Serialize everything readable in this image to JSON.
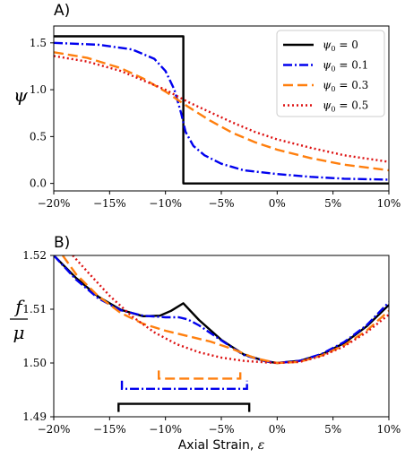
{
  "chart_data": [
    {
      "panel_label": "A)",
      "type": "line",
      "ylabel": "ψ",
      "xlim": [
        -20,
        10
      ],
      "ylim": [
        -0.08,
        1.68
      ],
      "xticks": [
        -20,
        -15,
        -10,
        -5,
        0,
        5,
        10
      ],
      "xtick_labels": [
        "−20%",
        "−15%",
        "−10%",
        "−5%",
        "0%",
        "5%",
        "10%"
      ],
      "yticks": [
        0.0,
        0.5,
        1.0,
        1.5
      ],
      "ytick_labels": [
        "0.0",
        "0.5",
        "1.0",
        "1.5"
      ],
      "legend_position": "top-right",
      "series": [
        {
          "name": "ψ0 = 0",
          "legend": "ψ",
          "legend_sub": "0",
          "legend_rhs": " = 0",
          "color": "#000000",
          "dash": "",
          "x": [
            -20,
            -8.4,
            -8.4,
            10
          ],
          "y": [
            1.57,
            1.57,
            0.0,
            0.0
          ]
        },
        {
          "name": "ψ0 = 0.1",
          "legend": "ψ",
          "legend_sub": "0",
          "legend_rhs": " = 0.1",
          "color": "#0000ee",
          "dash": "10 3 2 3",
          "x": [
            -20,
            -16,
            -13,
            -11,
            -10,
            -9.2,
            -8.6,
            -8.2,
            -7.5,
            -6.5,
            -5,
            -3,
            0,
            3,
            6,
            10
          ],
          "y": [
            1.5,
            1.48,
            1.43,
            1.33,
            1.2,
            1.0,
            0.75,
            0.55,
            0.4,
            0.3,
            0.21,
            0.14,
            0.1,
            0.07,
            0.05,
            0.04
          ]
        },
        {
          "name": "ψ0 = 0.3",
          "legend": "ψ",
          "legend_sub": "0",
          "legend_rhs": " = 0.3",
          "color": "#ff7f0e",
          "dash": "11 5",
          "x": [
            -20,
            -17,
            -14,
            -12,
            -10,
            -8,
            -6,
            -4,
            -2,
            0,
            3,
            6,
            10
          ],
          "y": [
            1.4,
            1.34,
            1.23,
            1.12,
            0.98,
            0.82,
            0.67,
            0.54,
            0.44,
            0.36,
            0.27,
            0.2,
            0.14
          ]
        },
        {
          "name": "ψ0 = 0.5",
          "legend": "ψ",
          "legend_sub": "0",
          "legend_rhs": " = 0.5",
          "color": "#dd1111",
          "dash": "2 3",
          "x": [
            -20,
            -17,
            -14,
            -12,
            -10,
            -8,
            -6,
            -4,
            -2,
            0,
            3,
            6,
            10
          ],
          "y": [
            1.36,
            1.3,
            1.2,
            1.1,
            1.0,
            0.87,
            0.76,
            0.65,
            0.55,
            0.47,
            0.38,
            0.3,
            0.23
          ]
        }
      ]
    },
    {
      "panel_label": "B)",
      "type": "line",
      "ylabel_num": "f",
      "ylabel_den": "μ",
      "xlabel": "Axial Strain, ",
      "xlabel_symbol": "ε",
      "xlim": [
        -20,
        10
      ],
      "ylim": [
        1.49,
        1.52
      ],
      "xticks": [
        -20,
        -15,
        -10,
        -5,
        0,
        5,
        10
      ],
      "xtick_labels": [
        "−20%",
        "−15%",
        "−10%",
        "−5%",
        "0%",
        "5%",
        "10%"
      ],
      "yticks": [
        1.49,
        1.5,
        1.51,
        1.52
      ],
      "ytick_labels": [
        "1.49",
        "1.50",
        "1.51",
        "1.52"
      ],
      "series": [
        {
          "name": "ψ0 = 0",
          "color": "#000000",
          "dash": "",
          "x": [
            -20,
            -18,
            -16,
            -14,
            -12,
            -10.5,
            -9.5,
            -8.4,
            -7,
            -5,
            -3,
            -1,
            0,
            2,
            4,
            6,
            8,
            10
          ],
          "y": [
            1.52,
            1.5158,
            1.5123,
            1.5099,
            1.5087,
            1.5088,
            1.5097,
            1.5111,
            1.508,
            1.5043,
            1.5016,
            1.5003,
            1.5,
            1.5004,
            1.5016,
            1.5037,
            1.5068,
            1.5108
          ]
        },
        {
          "name": "ψ0 = 0.1",
          "color": "#0000ee",
          "dash": "10 3 2 3",
          "x": [
            -20,
            -18,
            -16,
            -14,
            -12,
            -10,
            -8.8,
            -8,
            -7,
            -5,
            -3,
            -1,
            0,
            2,
            4,
            6,
            8,
            10
          ],
          "y": [
            1.52,
            1.5155,
            1.512,
            1.5098,
            1.5088,
            1.5085,
            1.5085,
            1.5081,
            1.507,
            1.5042,
            1.5015,
            1.5003,
            1.5,
            1.5004,
            1.5017,
            1.5039,
            1.507,
            1.5113
          ]
        },
        {
          "name": "ψ0 = 0.3",
          "color": "#ff7f0e",
          "dash": "11 5",
          "x": [
            -19.2,
            -18,
            -16,
            -14,
            -12,
            -10,
            -8,
            -6,
            -4,
            -2,
            0,
            2,
            4,
            6,
            8,
            10
          ],
          "y": [
            1.52,
            1.5165,
            1.5124,
            1.5093,
            1.5073,
            1.506,
            1.505,
            1.504,
            1.5026,
            1.5009,
            1.5,
            1.5002,
            1.5014,
            1.5033,
            1.506,
            1.5097
          ]
        },
        {
          "name": "ψ0 = 0.5",
          "color": "#dd1111",
          "dash": "2 3",
          "x": [
            -18.3,
            -17,
            -15,
            -13,
            -11,
            -9,
            -7,
            -5,
            -3,
            -1,
            0,
            2,
            4,
            6,
            8,
            10
          ],
          "y": [
            1.52,
            1.517,
            1.5125,
            1.5087,
            1.5057,
            1.5035,
            1.502,
            1.501,
            1.5004,
            1.5001,
            1.5,
            1.5002,
            1.5013,
            1.5031,
            1.5057,
            1.509
          ]
        }
      ],
      "brackets": [
        {
          "color": "#ff7f0e",
          "dash": "11 5",
          "x0": -10.6,
          "x1": -3.3,
          "y": 1.4971,
          "tick_dir": "up"
        },
        {
          "color": "#0000ee",
          "dash": "10 3 2 3",
          "x0": -13.9,
          "x1": -2.7,
          "y": 1.4952,
          "tick_dir": "up"
        },
        {
          "color": "#000000",
          "dash": "",
          "x0": -14.2,
          "x1": -2.5,
          "y": 1.4924,
          "tick_dir": "down"
        }
      ]
    }
  ]
}
